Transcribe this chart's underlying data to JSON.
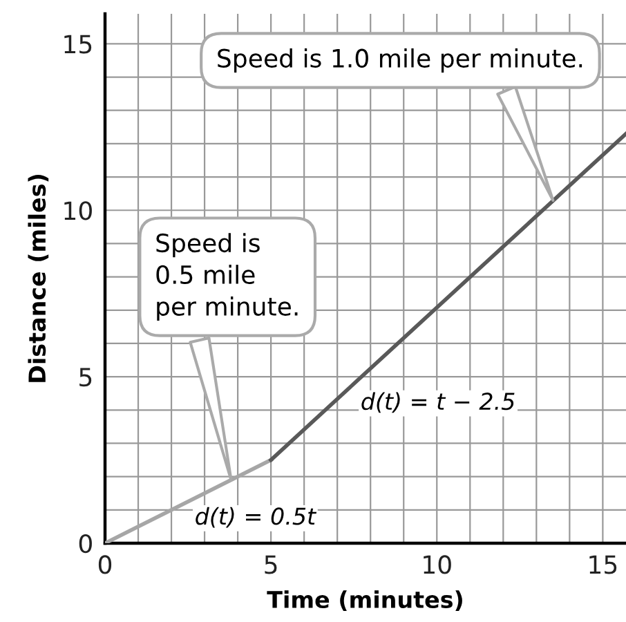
{
  "chart_data": {
    "type": "line",
    "xlabel": "Time (minutes)",
    "ylabel": "Distance (miles)",
    "series": [
      {
        "x": [
          0,
          5
        ],
        "values": [
          0,
          2.5
        ],
        "color": "#a6a6a6"
      },
      {
        "x": [
          5,
          15.7
        ],
        "values": [
          2.5,
          12.3
        ],
        "color": "#595959"
      }
    ],
    "xlim": [
      0,
      15.7
    ],
    "ylim": [
      0,
      15.9
    ],
    "xticks": [
      0,
      {
        "value": 1,
        "label": null
      },
      {
        "value": 2,
        "label": null
      },
      {
        "value": 3,
        "label": null
      },
      {
        "value": 4,
        "label": null
      },
      5,
      {
        "value": 6,
        "label": null
      },
      {
        "value": 7,
        "label": null
      },
      {
        "value": 8,
        "label": null
      },
      {
        "value": 9,
        "label": null
      },
      10,
      {
        "value": 11,
        "label": null
      },
      {
        "value": 12,
        "label": null
      },
      {
        "value": 13,
        "label": null
      },
      {
        "value": 14,
        "label": null
      },
      15
    ],
    "yticks": [
      0,
      {
        "value": 1,
        "label": null
      },
      {
        "value": 2,
        "label": null
      },
      {
        "value": 3,
        "label": null
      },
      {
        "value": 4,
        "label": null
      },
      5,
      {
        "value": 6,
        "label": null
      },
      {
        "value": 7,
        "label": null
      },
      {
        "value": 8,
        "label": null
      },
      {
        "value": 9,
        "label": null
      },
      10,
      {
        "value": 11,
        "label": null
      },
      {
        "value": 12,
        "label": null
      },
      {
        "value": 13,
        "label": null
      },
      {
        "value": 14,
        "label": null
      },
      15
    ],
    "grid": true,
    "marker": "none",
    "line_style": "solid",
    "annotations": [
      {
        "text": "Speed is 1.0 mile per minute.",
        "x": 13.5,
        "y": 10.3
      },
      {
        "text": "Speed is\n0.5 mile\nper minute.",
        "x": 3.8,
        "y": 1.9
      },
      "d(t) = t − 2.5",
      "d(t) = 0.5t"
    ]
  }
}
